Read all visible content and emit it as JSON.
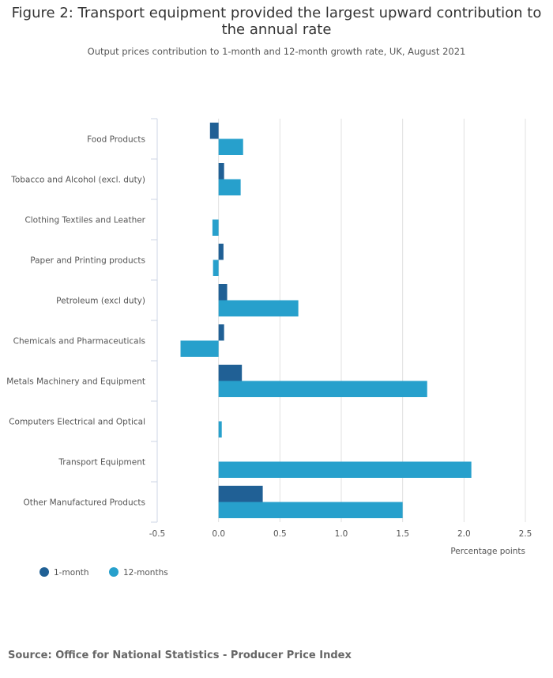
{
  "title": "Figure 2: Transport equipment provided the largest upward contribution to the annual rate",
  "subtitle": "Output prices contribution to 1-month and 12-month growth rate, UK, August 2021",
  "source": "Source: Office for National Statistics - Producer Price Index",
  "chart_data": {
    "type": "bar",
    "orientation": "horizontal",
    "categories": [
      "Food Products",
      "Tobacco and Alcohol (excl. duty)",
      "Clothing Textiles and Leather",
      "Paper and Printing products",
      "Petroleum (excl duty)",
      "Chemicals and Pharmaceuticals",
      "Metals Machinery and Equipment",
      "Computers Electrical and Optical",
      "Transport Equipment",
      "Other Manufactured Products"
    ],
    "series": [
      {
        "name": "1-month",
        "color": "#206095",
        "values": [
          -0.07,
          0.045,
          0,
          0.04,
          0.07,
          0.045,
          0.19,
          0,
          0,
          0.36
        ]
      },
      {
        "name": "12-months",
        "color": "#27a0cc",
        "values": [
          0.2,
          0.18,
          -0.05,
          -0.045,
          0.65,
          -0.31,
          1.7,
          0.026,
          2.06,
          1.5
        ]
      }
    ],
    "xlabel": "Percentage points",
    "xlim": [
      -0.5,
      2.5
    ],
    "xticks": [
      "-0.5",
      "0.0",
      "0.5",
      "1.0",
      "1.5",
      "2.0",
      "2.5"
    ],
    "grid": true,
    "legend": "bottom-left"
  }
}
